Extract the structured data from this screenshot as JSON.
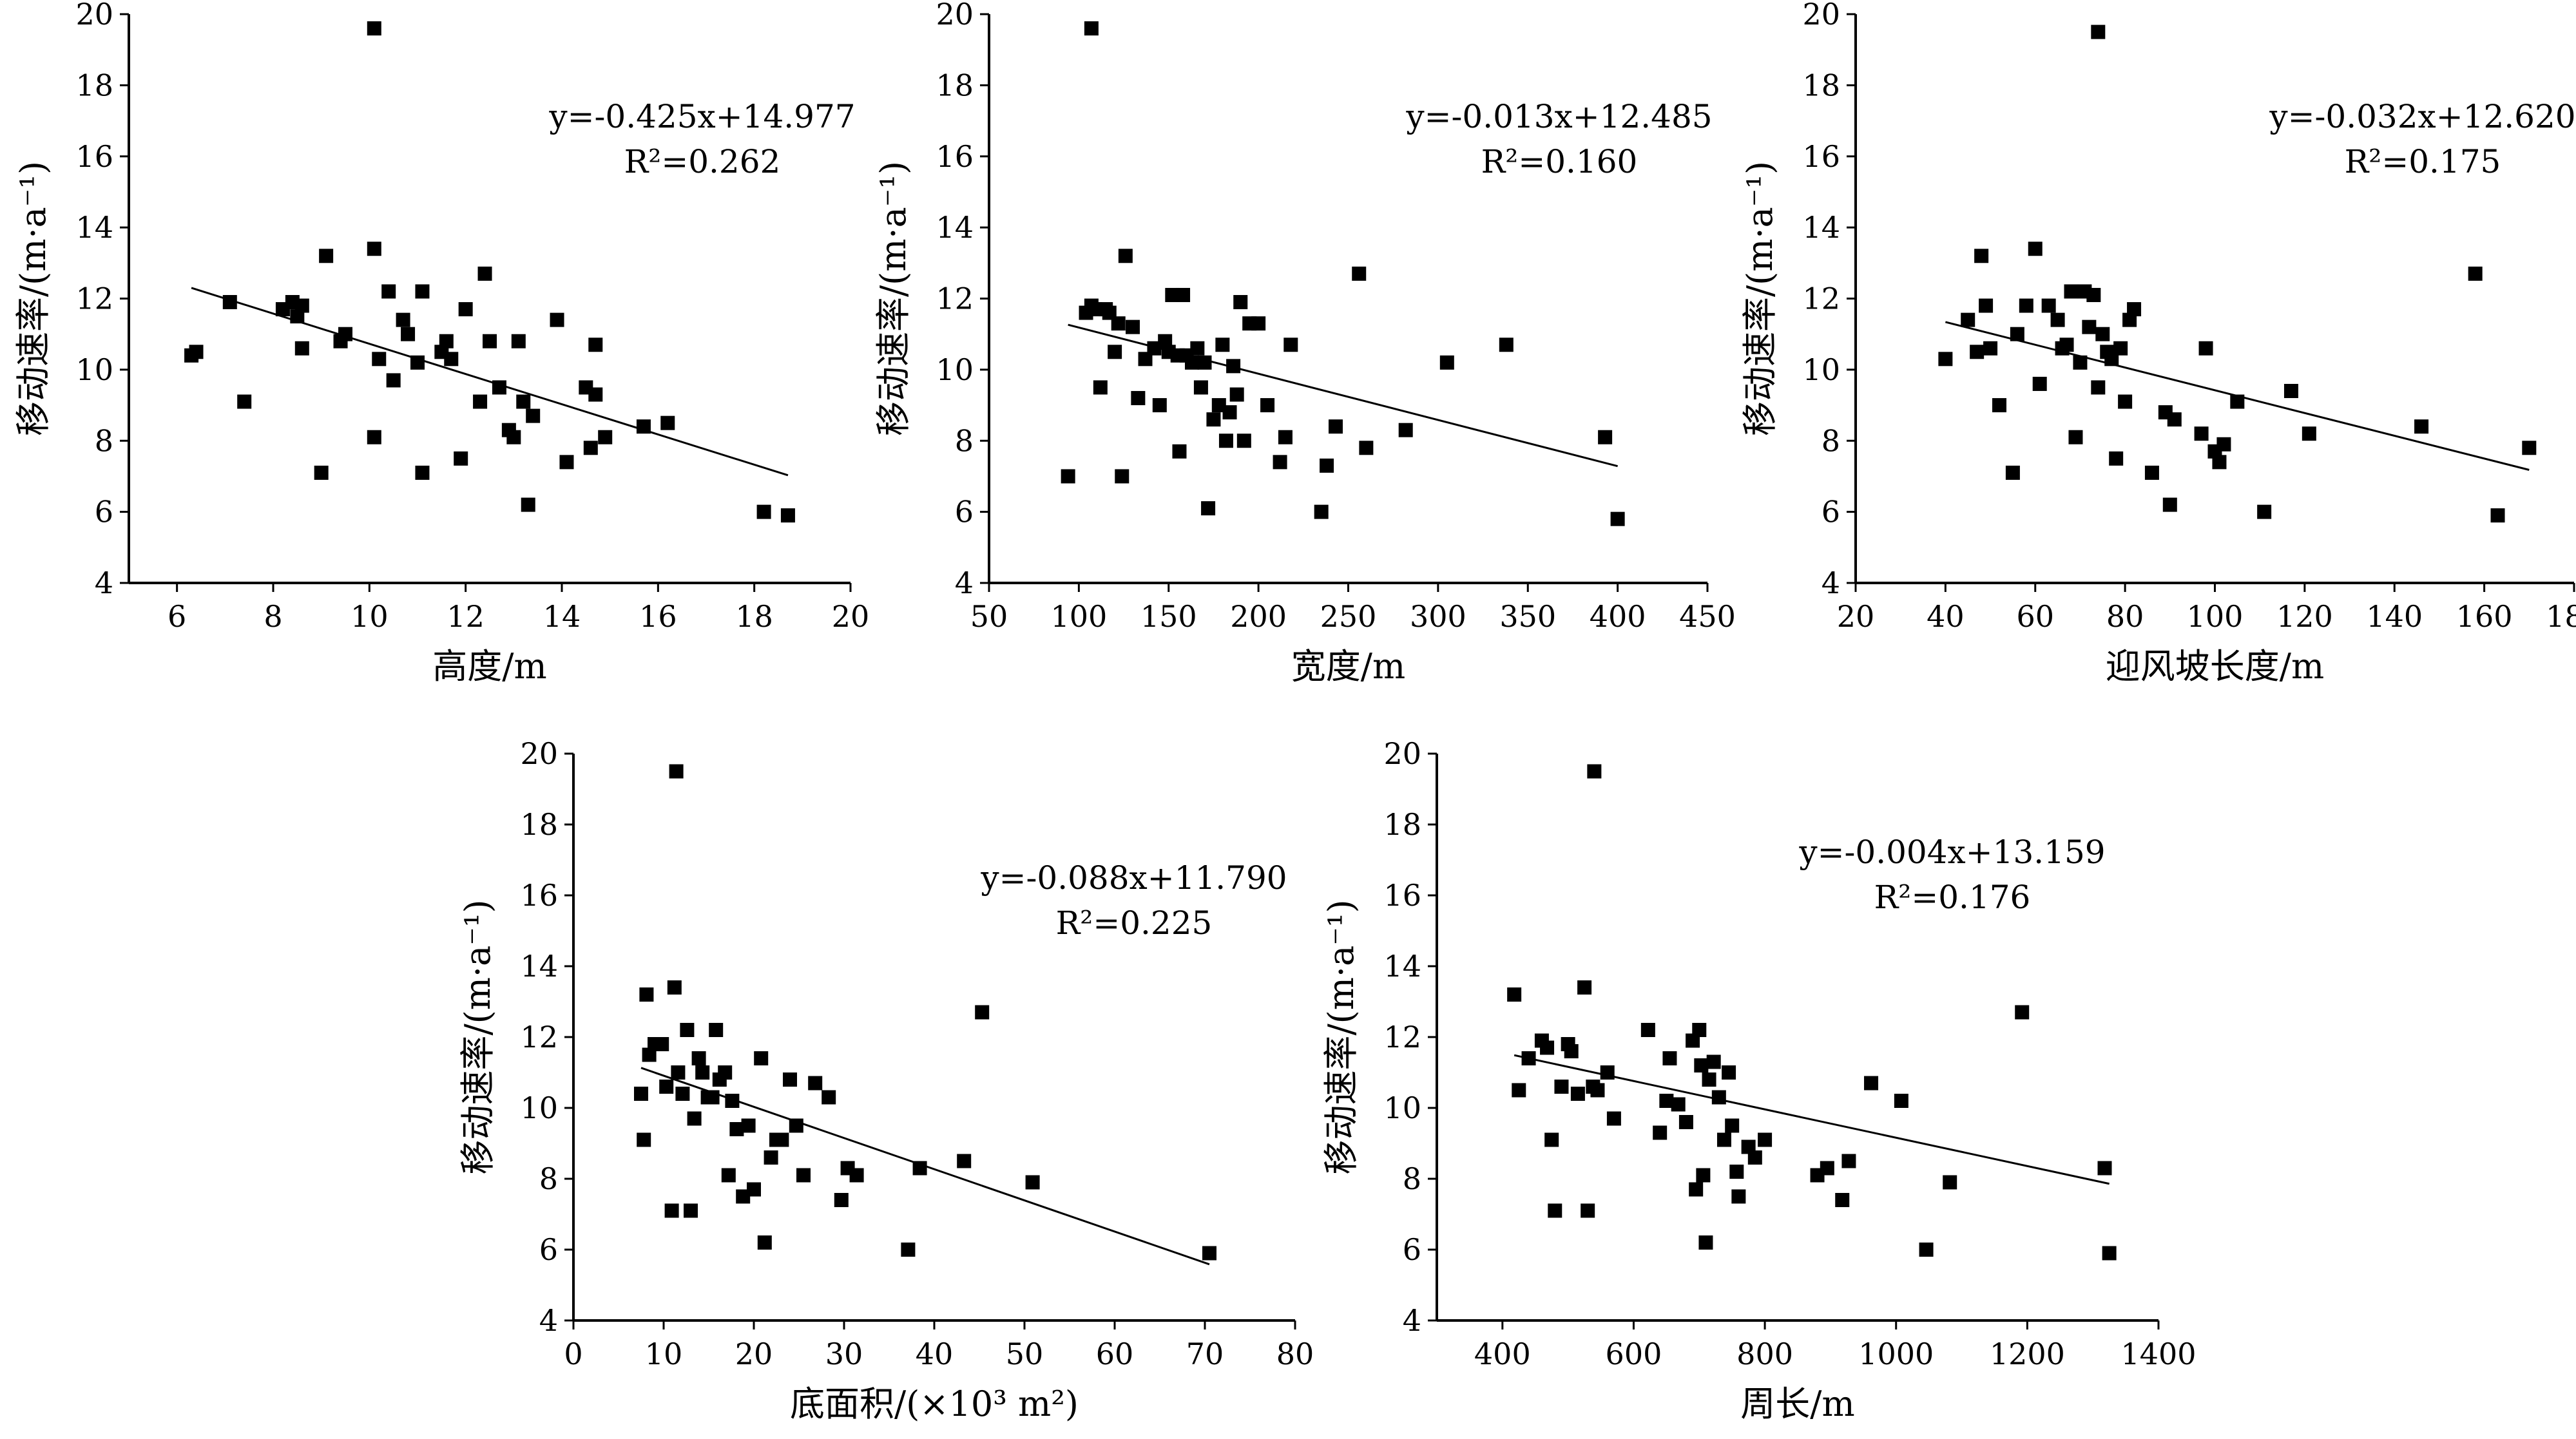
{
  "chart_data": [
    {
      "type": "scatter",
      "xlabel": "高度/m",
      "ylabel": "移动速率/(m·a⁻¹)",
      "xlim": [
        5,
        20
      ],
      "ylim": [
        4,
        20
      ],
      "xticks": [
        6,
        8,
        10,
        12,
        14,
        16,
        18,
        20
      ],
      "yticks": [
        4,
        6,
        8,
        10,
        12,
        14,
        16,
        18,
        20
      ],
      "x": [
        6.3,
        6.4,
        7.1,
        7.4,
        8.2,
        8.4,
        8.5,
        8.6,
        8.6,
        9.0,
        9.1,
        9.4,
        9.5,
        10.1,
        10.1,
        10.2,
        10.4,
        10.5,
        10.7,
        10.8,
        11.0,
        11.1,
        11.1,
        11.5,
        11.6,
        11.7,
        11.9,
        12.0,
        12.3,
        12.4,
        12.5,
        12.7,
        12.9,
        13.0,
        13.1,
        13.2,
        13.3,
        13.4,
        13.9,
        14.1,
        14.5,
        14.6,
        14.7,
        14.7,
        14.9,
        15.7,
        16.2,
        18.2,
        18.7,
        10.1
      ],
      "y": [
        10.4,
        10.5,
        11.9,
        9.1,
        11.7,
        11.9,
        11.5,
        10.6,
        11.8,
        7.1,
        13.2,
        10.8,
        11.0,
        13.4,
        8.1,
        10.3,
        12.2,
        9.7,
        11.4,
        11.0,
        10.2,
        12.2,
        7.1,
        10.5,
        10.8,
        10.3,
        7.5,
        11.7,
        9.1,
        12.7,
        10.8,
        9.5,
        8.3,
        8.1,
        10.8,
        9.1,
        6.2,
        8.7,
        11.4,
        7.4,
        9.5,
        7.8,
        9.3,
        10.7,
        8.1,
        8.4,
        8.5,
        6.0,
        5.9,
        19.6
      ],
      "fit": {
        "slope": -0.425,
        "intercept": 14.977,
        "x_range": [
          6.3,
          18.7
        ]
      },
      "equation": "y=-0.425x+14.977",
      "r2": "R²=0.262"
    },
    {
      "type": "scatter",
      "xlabel": "宽度/m",
      "ylabel": "移动速率/(m·a⁻¹)",
      "xlim": [
        50,
        450
      ],
      "ylim": [
        4,
        20
      ],
      "xticks": [
        50,
        100,
        150,
        200,
        250,
        300,
        350,
        400,
        450
      ],
      "yticks": [
        4,
        6,
        8,
        10,
        12,
        14,
        16,
        18,
        20
      ],
      "x": [
        94,
        104,
        107,
        109,
        112,
        115,
        117,
        120,
        122,
        124,
        126,
        130,
        133,
        137,
        142,
        145,
        148,
        150,
        152,
        155,
        156,
        158,
        160,
        163,
        166,
        168,
        170,
        172,
        175,
        178,
        180,
        182,
        184,
        186,
        188,
        190,
        192,
        195,
        200,
        205,
        212,
        215,
        218,
        235,
        238,
        243,
        256,
        260,
        282,
        305,
        338,
        393,
        400,
        107
      ],
      "y": [
        7.0,
        11.6,
        11.8,
        11.7,
        9.5,
        11.7,
        11.6,
        10.5,
        11.3,
        7.0,
        13.2,
        11.2,
        9.2,
        10.3,
        10.6,
        9.0,
        10.8,
        10.5,
        12.1,
        10.4,
        7.7,
        12.1,
        10.4,
        10.2,
        10.6,
        9.5,
        10.2,
        6.1,
        8.6,
        9.0,
        10.7,
        8.0,
        8.8,
        10.1,
        9.3,
        11.9,
        8.0,
        11.3,
        11.3,
        9.0,
        7.4,
        8.1,
        10.7,
        6.0,
        7.3,
        8.4,
        12.7,
        7.8,
        8.3,
        10.2,
        10.7,
        8.1,
        5.8,
        19.6
      ],
      "fit": {
        "slope": -0.013,
        "intercept": 12.485,
        "x_range": [
          94,
          400
        ]
      },
      "equation": "y=-0.013x+12.485",
      "r2": "R²=0.160"
    },
    {
      "type": "scatter",
      "xlabel": "迎风坡长度/m",
      "ylabel": "移动速率/(m·a⁻¹)",
      "xlim": [
        20,
        180
      ],
      "ylim": [
        4,
        20
      ],
      "xticks": [
        20,
        40,
        60,
        80,
        100,
        120,
        140,
        160,
        180
      ],
      "yticks": [
        4,
        6,
        8,
        10,
        12,
        14,
        16,
        18,
        20
      ],
      "x": [
        40,
        45,
        47,
        48,
        49,
        50,
        52,
        55,
        56,
        58,
        60,
        61,
        63,
        65,
        66,
        67,
        68,
        69,
        70,
        71,
        72,
        73,
        74,
        75,
        76,
        77,
        78,
        79,
        80,
        81,
        82,
        86,
        89,
        90,
        91,
        97,
        98,
        100,
        101,
        102,
        105,
        111,
        117,
        121,
        146,
        158,
        163,
        170,
        74
      ],
      "y": [
        10.3,
        11.4,
        10.5,
        13.2,
        11.8,
        10.6,
        9.0,
        7.1,
        11.0,
        11.8,
        13.4,
        9.6,
        11.8,
        11.4,
        10.6,
        10.7,
        12.2,
        8.1,
        10.2,
        12.2,
        11.2,
        12.1,
        9.5,
        11.0,
        10.5,
        10.3,
        7.5,
        10.6,
        9.1,
        11.4,
        11.7,
        7.1,
        8.8,
        6.2,
        8.6,
        8.2,
        10.6,
        7.7,
        7.4,
        7.9,
        9.1,
        6.0,
        9.4,
        8.2,
        8.4,
        12.7,
        5.9,
        7.8,
        19.5
      ],
      "fit": {
        "slope": -0.032,
        "intercept": 12.62,
        "x_range": [
          40,
          170
        ]
      },
      "equation": "y=-0.032x+12.620",
      "r2": "R²=0.175"
    },
    {
      "type": "scatter",
      "xlabel": "底面积/(×10³ m²)",
      "ylabel": "移动速率/(m·a⁻¹)",
      "xlim": [
        0,
        80
      ],
      "ylim": [
        4,
        20
      ],
      "xticks": [
        0,
        10,
        20,
        30,
        40,
        50,
        60,
        70,
        80
      ],
      "yticks": [
        4,
        6,
        8,
        10,
        12,
        14,
        16,
        18,
        20
      ],
      "x": [
        7.5,
        7.8,
        8.1,
        8.4,
        9.0,
        9.8,
        10.3,
        10.9,
        11.2,
        11.6,
        12.1,
        12.6,
        13.0,
        13.4,
        13.9,
        14.3,
        14.9,
        15.4,
        15.8,
        16.2,
        16.8,
        17.2,
        17.6,
        18.1,
        18.8,
        19.4,
        20.0,
        20.8,
        21.2,
        21.9,
        22.5,
        23.1,
        24.0,
        24.7,
        25.5,
        26.8,
        28.3,
        29.7,
        30.4,
        31.4,
        37.1,
        38.4,
        43.3,
        45.3,
        50.9,
        70.5,
        11.4
      ],
      "y": [
        10.4,
        9.1,
        13.2,
        11.5,
        11.8,
        11.8,
        10.6,
        7.1,
        13.4,
        11.0,
        10.4,
        12.2,
        7.1,
        9.7,
        11.4,
        11.0,
        10.3,
        10.3,
        12.2,
        10.8,
        11.0,
        8.1,
        10.2,
        9.4,
        7.5,
        9.5,
        7.7,
        11.4,
        6.2,
        8.6,
        9.1,
        9.1,
        10.8,
        9.5,
        8.1,
        10.7,
        10.3,
        7.4,
        8.3,
        8.1,
        6.0,
        8.3,
        8.5,
        12.7,
        7.9,
        5.9,
        19.5
      ],
      "fit": {
        "slope": -0.088,
        "intercept": 11.79,
        "x_range": [
          7.5,
          70.5
        ]
      },
      "equation": "y=-0.088x+11.790",
      "r2": "R²=0.225"
    },
    {
      "type": "scatter",
      "xlabel": "周长/m",
      "ylabel": "移动速率/(m·a⁻¹)",
      "xlim": [
        300,
        1400
      ],
      "ylim": [
        4,
        20
      ],
      "xticks": [
        400,
        600,
        800,
        1000,
        1200,
        1400
      ],
      "yticks": [
        4,
        6,
        8,
        10,
        12,
        14,
        16,
        18,
        20
      ],
      "x": [
        418,
        425,
        440,
        460,
        468,
        475,
        480,
        490,
        500,
        505,
        515,
        525,
        530,
        538,
        545,
        560,
        570,
        622,
        640,
        650,
        655,
        668,
        680,
        690,
        695,
        700,
        703,
        706,
        710,
        715,
        722,
        730,
        738,
        745,
        750,
        757,
        760,
        775,
        785,
        800,
        880,
        895,
        918,
        928,
        962,
        1008,
        1046,
        1082,
        1192,
        1318,
        1325,
        540
      ],
      "y": [
        13.2,
        10.5,
        11.4,
        11.9,
        11.7,
        9.1,
        7.1,
        10.6,
        11.8,
        11.6,
        10.4,
        13.4,
        7.1,
        10.6,
        10.5,
        11.0,
        9.7,
        12.2,
        9.3,
        10.2,
        11.4,
        10.1,
        9.6,
        11.9,
        7.7,
        12.2,
        11.2,
        8.1,
        6.2,
        10.8,
        11.3,
        10.3,
        9.1,
        11.0,
        9.5,
        8.2,
        7.5,
        8.9,
        8.6,
        9.1,
        8.1,
        8.3,
        7.4,
        8.5,
        10.7,
        10.2,
        6.0,
        7.9,
        12.7,
        8.3,
        5.9,
        19.5
      ],
      "fit": {
        "slope": -0.004,
        "intercept": 13.159,
        "x_range": [
          418,
          1325
        ]
      },
      "equation": "y=-0.004x+13.159",
      "r2": "R²=0.176"
    }
  ]
}
